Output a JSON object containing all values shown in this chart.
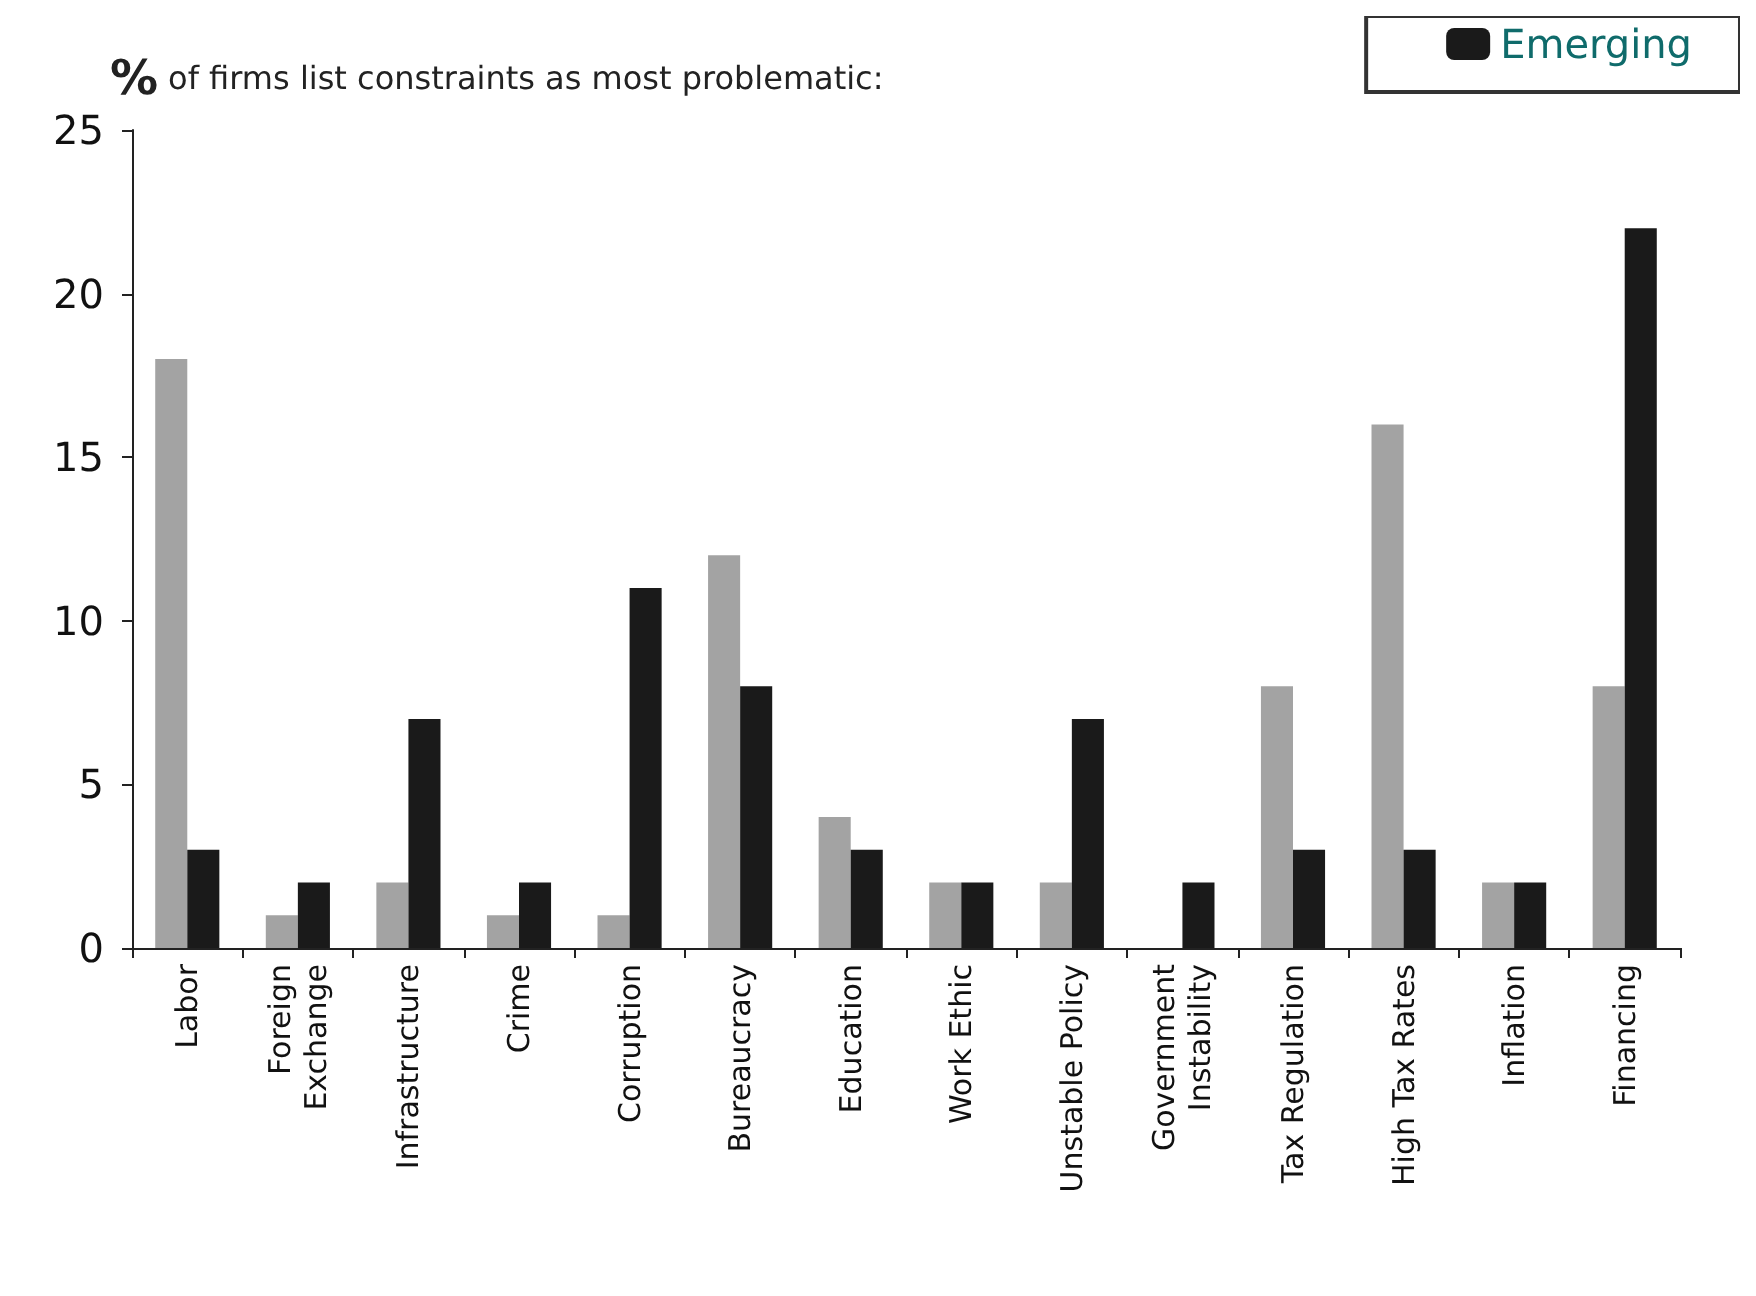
{
  "chart_data": {
    "type": "bar",
    "title": "% of firms list constraints as most problematic:",
    "categories": [
      "Labor",
      "Foreign\nExchange",
      "Infrastructure",
      "Crime",
      "Corruption",
      "Bureaucracy",
      "Education",
      "Work Ethic",
      "Unstable Policy",
      "Government\nInstability",
      "Tax Regulation",
      "High Tax Rates",
      "Inflation",
      "Financing"
    ],
    "series": [
      {
        "color": "#a3a3a3",
        "values": [
          18,
          1,
          2,
          1,
          1,
          12,
          4,
          2,
          2,
          0,
          8,
          16,
          2,
          8
        ]
      },
      {
        "name": "Emerging",
        "color": "#1a1a1a",
        "values": [
          3,
          2,
          7,
          2,
          11,
          8,
          3,
          2,
          7,
          2,
          3,
          3,
          2,
          22
        ]
      }
    ],
    "ylim": [
      0,
      25
    ],
    "yticks": [
      0,
      5,
      10,
      15,
      20,
      25
    ],
    "grid": false,
    "legend": "top right"
  }
}
